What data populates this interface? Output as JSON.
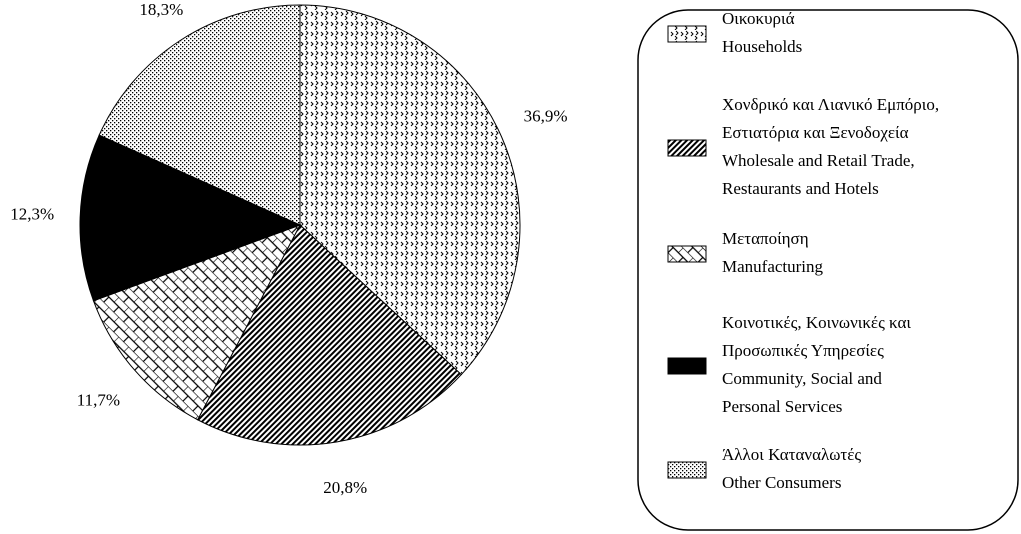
{
  "chart_data": {
    "type": "pie",
    "categories": [
      [
        "Οικοκυριά",
        "Households"
      ],
      [
        "Χονδρικό και Λιανικό Εμπόριο,",
        "Εστιατόρια και Ξενοδοχεία",
        "Wholesale and Retail Trade,",
        "Restaurants and Hotels"
      ],
      [
        "Μεταποίηση",
        "Manufacturing"
      ],
      [
        "Κοινοτικές, Κοινωνικές και",
        "Προσωπικές Υπηρεσίες",
        "Community, Social and",
        "Personal Services"
      ],
      [
        "Άλλοι Καταναλωτές",
        "Other Consumers"
      ]
    ],
    "values": [
      36.9,
      20.8,
      11.7,
      12.3,
      18.3
    ],
    "value_labels": [
      "36,9%",
      "20,8%",
      "11,7%",
      "12,3%",
      "18,3%"
    ]
  }
}
